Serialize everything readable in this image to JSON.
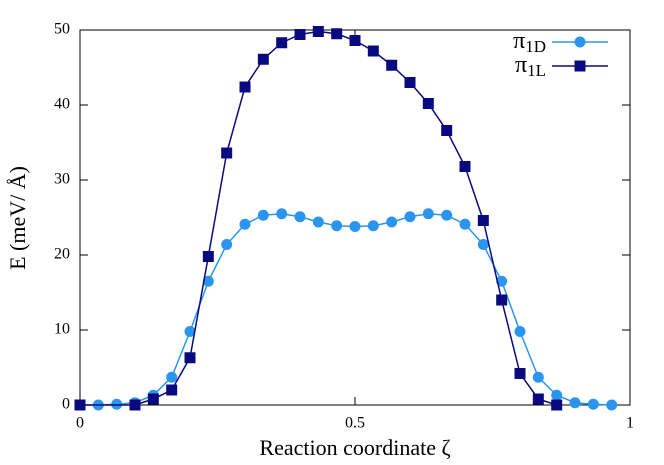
{
  "chart_data": {
    "type": "line",
    "xlabel": "Reaction coordinate ζ",
    "ylabel": "E (meV/ Å)",
    "xlim": [
      0,
      1
    ],
    "xticks": [
      0,
      0.5,
      1
    ],
    "ylim": [
      0,
      50
    ],
    "yticks": [
      0,
      10,
      20,
      30,
      40,
      50
    ],
    "legend": "top-right",
    "series": [
      {
        "name": "π1D",
        "color": "#2b95ee",
        "marker": "circle",
        "x": [
          0,
          0.0333,
          0.0667,
          0.1,
          0.1333,
          0.1667,
          0.2,
          0.2333,
          0.2667,
          0.3,
          0.3333,
          0.3667,
          0.4,
          0.4333,
          0.4667,
          0.5,
          0.5333,
          0.5667,
          0.6,
          0.6333,
          0.6667,
          0.7,
          0.7333,
          0.7667,
          0.8,
          0.8333,
          0.8667,
          0.9,
          0.9333,
          0.9667
        ],
        "values": [
          0,
          0,
          0.1,
          0.3,
          1.3,
          3.7,
          9.8,
          16.5,
          21.4,
          24.1,
          25.3,
          25.5,
          25.1,
          24.4,
          23.9,
          23.8,
          23.9,
          24.4,
          25.1,
          25.5,
          25.3,
          24.1,
          21.4,
          16.5,
          9.8,
          3.7,
          1.3,
          0.3,
          0.1,
          0
        ]
      },
      {
        "name": "π1L",
        "color": "#0a0a80",
        "marker": "square",
        "x": [
          0,
          0.1,
          0.1333,
          0.1667,
          0.2,
          0.2333,
          0.2667,
          0.3,
          0.3333,
          0.3667,
          0.4,
          0.4333,
          0.4667,
          0.5,
          0.5333,
          0.5667,
          0.6,
          0.6333,
          0.6667,
          0.7,
          0.7333,
          0.7667,
          0.8,
          0.8333,
          0.8667
        ],
        "values": [
          0,
          0,
          0.8,
          2.0,
          6.3,
          19.8,
          33.6,
          42.4,
          46.1,
          48.3,
          49.4,
          49.8,
          49.5,
          48.6,
          47.2,
          45.3,
          43.0,
          40.2,
          36.6,
          31.8,
          24.6,
          14.0,
          4.2,
          0.8,
          0
        ]
      }
    ]
  }
}
